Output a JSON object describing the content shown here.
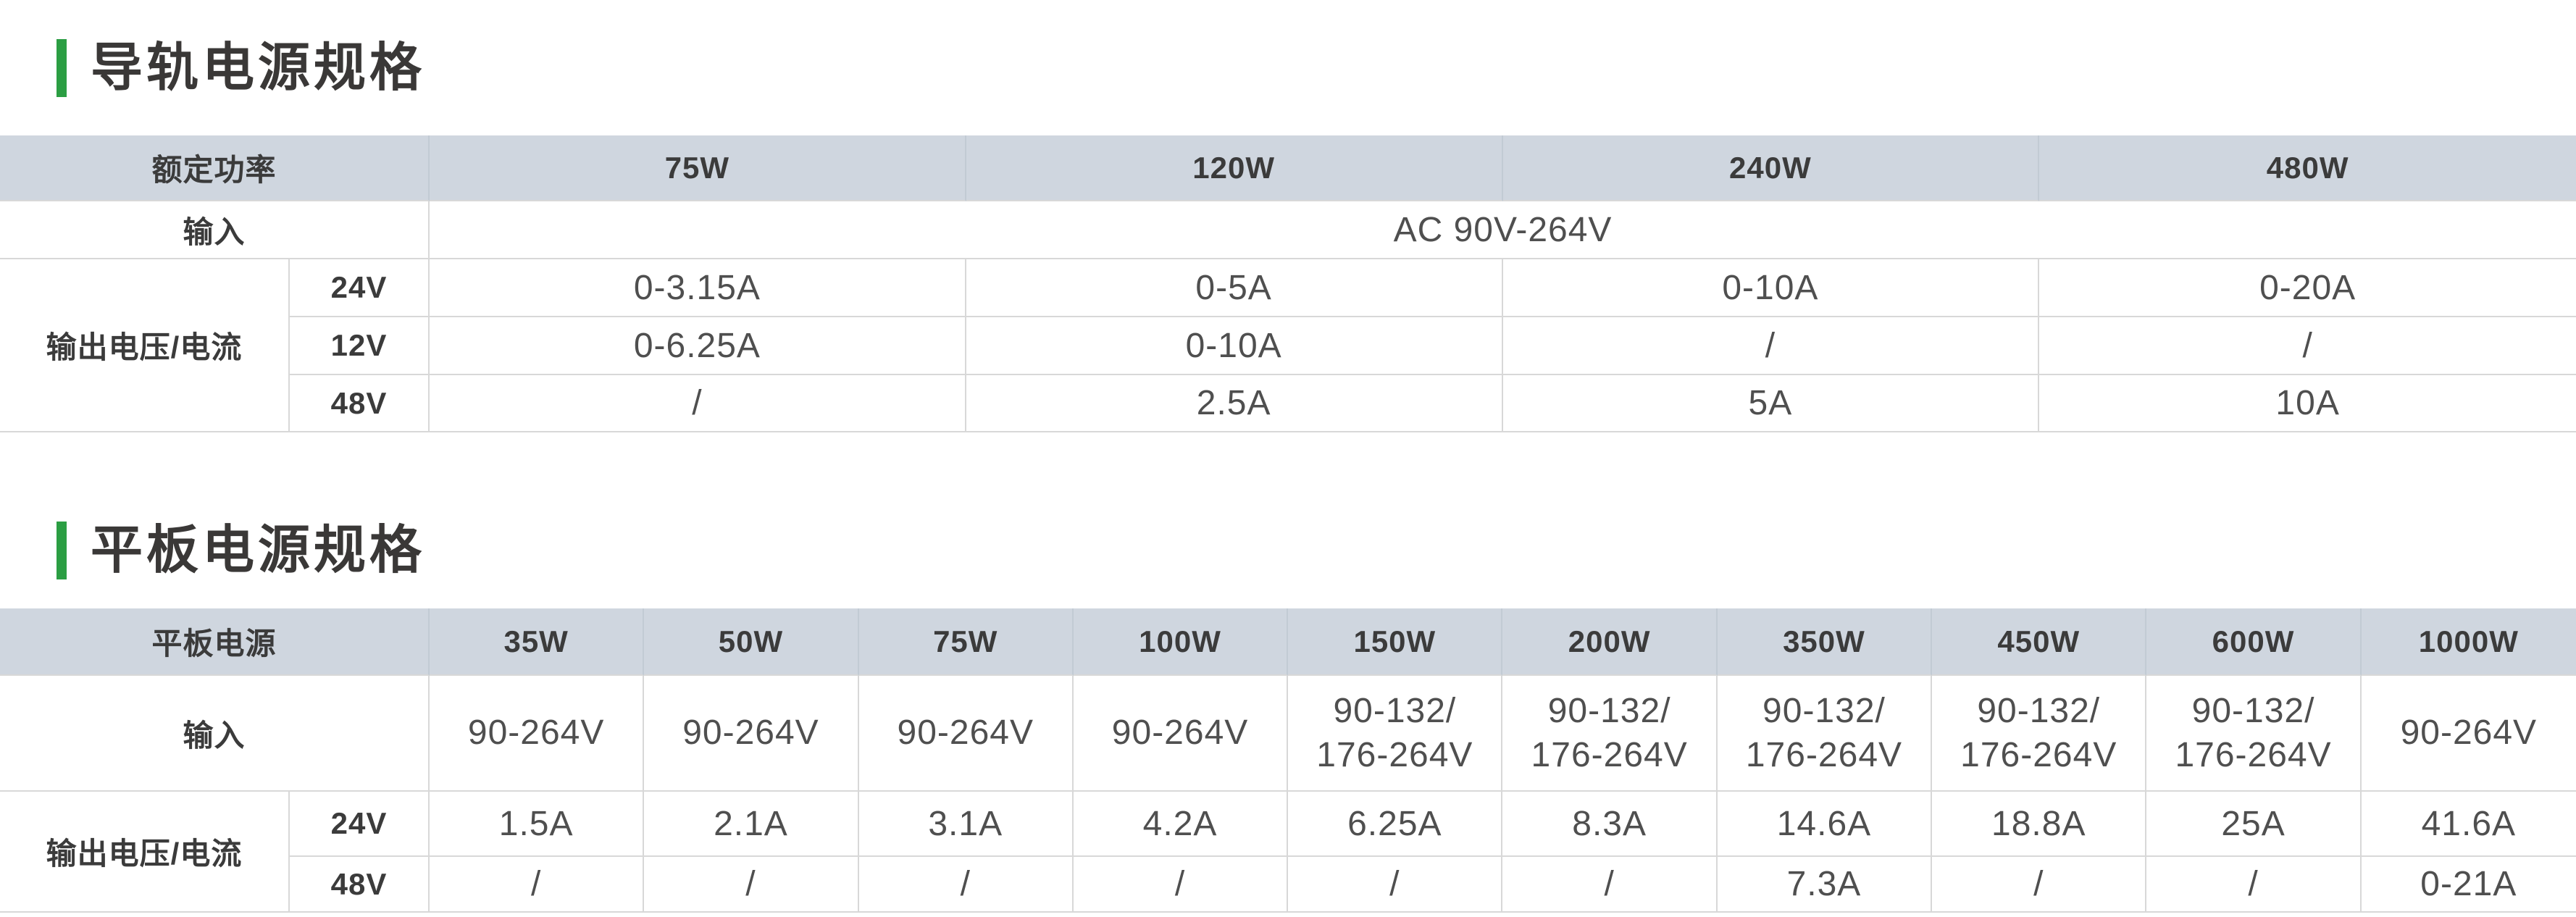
{
  "colors": {
    "accent": "#2b9e43",
    "header_bg": "#cfd6df",
    "header_line": "#c2cbd4",
    "line": "#d8d8d8",
    "label": "#3b3b3b",
    "value": "#4f4f4f",
    "title": "#3a3837"
  },
  "rail_section": {
    "title": "导轨电源规格",
    "table": {
      "corner_label": "额定功率",
      "columns": [
        "75W",
        "120W",
        "240W",
        "480W"
      ],
      "input_label": "输入",
      "input_value": "AC 90V-264V",
      "output_label": "输出电压/电流",
      "rows": [
        {
          "voltage": "24V",
          "values": [
            "0-3.15A",
            "0-5A",
            "0-10A",
            "0-20A"
          ]
        },
        {
          "voltage": "12V",
          "values": [
            "0-6.25A",
            "0-10A",
            "/",
            "/"
          ]
        },
        {
          "voltage": "48V",
          "values": [
            "/",
            "2.5A",
            "5A",
            "10A"
          ]
        }
      ]
    }
  },
  "panel_section": {
    "title": "平板电源规格",
    "table": {
      "corner_label": "平板电源",
      "columns": [
        "35W",
        "50W",
        "75W",
        "100W",
        "150W",
        "200W",
        "350W",
        "450W",
        "600W",
        "1000W"
      ],
      "input_label": "输入",
      "input_values": [
        "90-264V",
        "90-264V",
        "90-264V",
        "90-264V",
        "90-132/\n176-264V",
        "90-132/\n176-264V",
        "90-132/\n176-264V",
        "90-132/\n176-264V",
        "90-132/\n176-264V",
        "90-264V"
      ],
      "output_label": "输出电压/电流",
      "rows": [
        {
          "voltage": "24V",
          "values": [
            "1.5A",
            "2.1A",
            "3.1A",
            "4.2A",
            "6.25A",
            "8.3A",
            "14.6A",
            "18.8A",
            "25A",
            "41.6A"
          ]
        },
        {
          "voltage": "48V",
          "values": [
            "/",
            "/",
            "/",
            "/",
            "/",
            "/",
            "7.3A",
            "/",
            "/",
            "0-21A"
          ]
        }
      ]
    }
  }
}
